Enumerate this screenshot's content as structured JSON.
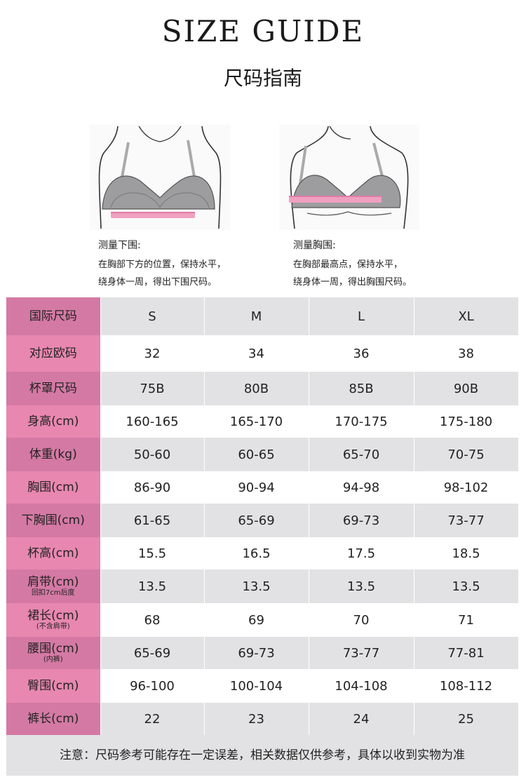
{
  "header": {
    "title_en": "SIZE GUIDE",
    "title_cn": "尺码指南"
  },
  "figures": [
    {
      "title": "测量下围:",
      "line1": "在胸部下方的位置，保持水平，",
      "line2": "绕身体一周，得出下围尺码。"
    },
    {
      "title": "测量胸围:",
      "line1": "在胸部最高点，保持水平，",
      "line2": "绕身体一周，得出胸围尺码。"
    }
  ],
  "table": {
    "rows": [
      {
        "label": "国际尺码",
        "sub": "",
        "values": [
          "S",
          "M",
          "L",
          "XL"
        ]
      },
      {
        "label": "对应欧码",
        "sub": "",
        "values": [
          "32",
          "34",
          "36",
          "38"
        ]
      },
      {
        "label": "杯罩尺码",
        "sub": "",
        "values": [
          "75B",
          "80B",
          "85B",
          "90B"
        ]
      },
      {
        "label": "身高(cm)",
        "sub": "",
        "values": [
          "160-165",
          "165-170",
          "170-175",
          "175-180"
        ]
      },
      {
        "label": "体重(kg)",
        "sub": "",
        "values": [
          "50-60",
          "60-65",
          "65-70",
          "70-75"
        ]
      },
      {
        "label": "胸围(cm)",
        "sub": "",
        "values": [
          "86-90",
          "90-94",
          "94-98",
          "98-102"
        ]
      },
      {
        "label": "下胸围(cm)",
        "sub": "",
        "values": [
          "61-65",
          "65-69",
          "69-73",
          "73-77"
        ]
      },
      {
        "label": "杯高(cm)",
        "sub": "",
        "values": [
          "15.5",
          "16.5",
          "17.5",
          "18.5"
        ]
      },
      {
        "label": "肩带(cm)",
        "sub": "回扣7cm后度",
        "values": [
          "13.5",
          "13.5",
          "13.5",
          "13.5"
        ]
      },
      {
        "label": "裙长(cm)",
        "sub": "(不含肩带)",
        "values": [
          "68",
          "69",
          "70",
          "71"
        ]
      },
      {
        "label": "腰围(cm)",
        "sub": "(内裤)",
        "values": [
          "65-69",
          "69-73",
          "73-77",
          "77-81"
        ]
      },
      {
        "label": "臀围(cm)",
        "sub": "",
        "values": [
          "96-100",
          "100-104",
          "104-108",
          "108-112"
        ]
      },
      {
        "label": "裤长(cm)",
        "sub": "",
        "values": [
          "22",
          "23",
          "24",
          "25"
        ]
      }
    ]
  },
  "note": "注意：尺码参考可能存在一定误差，相关数据仅供参考，具体以收到实物为准",
  "colors": {
    "label_dark": "#d479a4",
    "label_light": "#e887b0",
    "row_gray": "#e2e2e4",
    "measure_band": "#f0a0c0"
  }
}
